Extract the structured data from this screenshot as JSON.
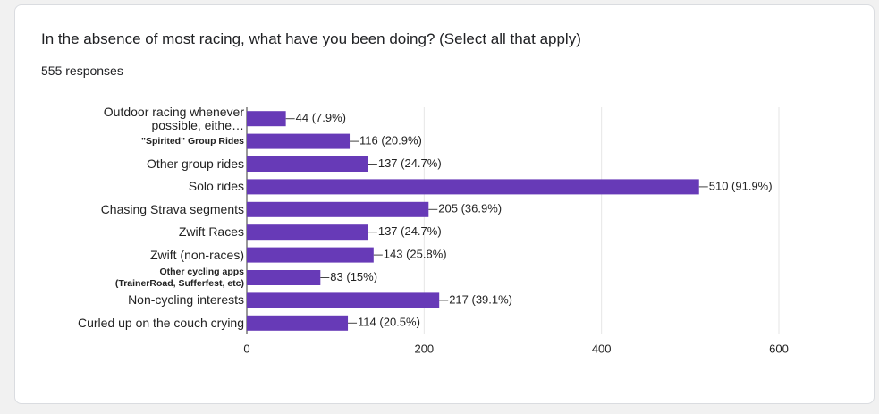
{
  "header": {
    "title": "In the absence of most racing, what have you been doing? (Select all that apply)",
    "responses": "555 responses"
  },
  "chart_data": {
    "type": "bar",
    "orientation": "horizontal",
    "categories": [
      "Outdoor racing whenever possible, eithe…",
      "\"Spirited\" Group Rides",
      "Other group rides",
      "Solo rides",
      "Chasing Strava segments",
      "Zwift Races",
      "Zwift (non-races)",
      "Other cycling apps (TrainerRoad, Sufferfest, etc)",
      "Non-cycling interests",
      "Curled up on the couch crying"
    ],
    "values": [
      44,
      116,
      137,
      510,
      205,
      137,
      143,
      83,
      217,
      114
    ],
    "value_labels": [
      "44 (7.9%)",
      "116 (20.9%)",
      "137 (24.7%)",
      "510 (91.9%)",
      "205 (36.9%)",
      "137 (24.7%)",
      "143 (25.8%)",
      "83 (15%)",
      "217 (39.1%)",
      "114 (20.5%)"
    ],
    "color": "#673ab7",
    "xlim": [
      0,
      600
    ],
    "xticks": [
      0,
      200,
      400,
      600
    ],
    "grid": true
  }
}
